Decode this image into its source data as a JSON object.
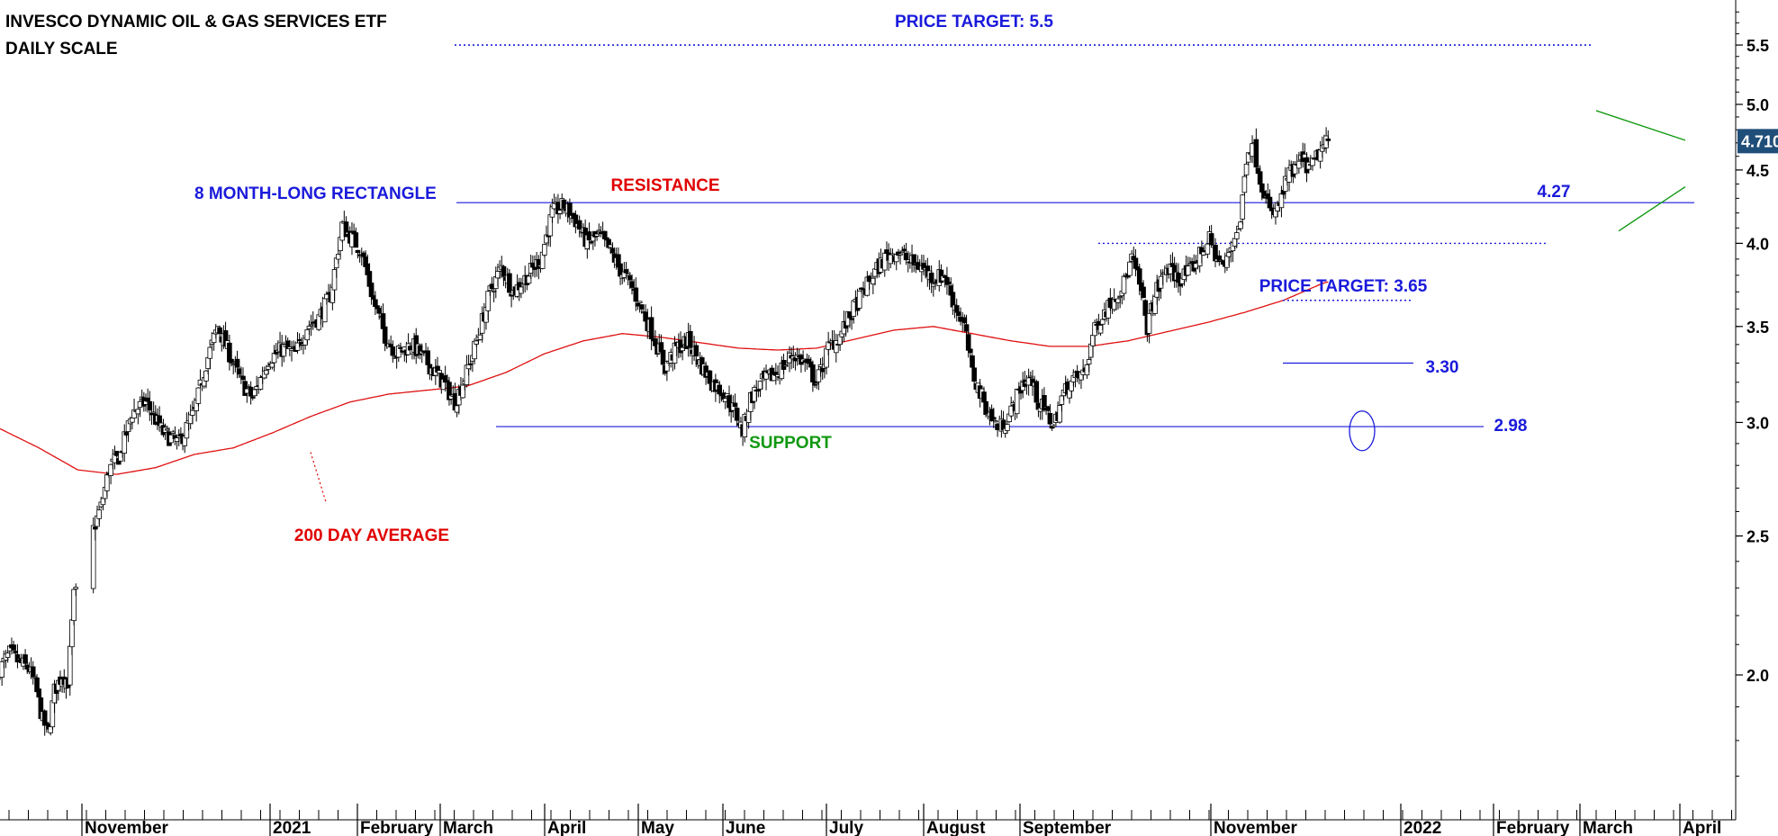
{
  "title": {
    "line1": "INVESCO DYNAMIC OIL & GAS SERVICES ETF",
    "line2": "DAILY SCALE"
  },
  "colors": {
    "blue": "#1a1adb",
    "red": "#e00000",
    "green": "#119911",
    "ma_red": "#e01010",
    "price_tag_bg": "#1f4e79"
  },
  "annotations": {
    "price_target_top": "PRICE TARGET: 5.5",
    "rectangle": "8 MONTH-LONG RECTANGLE",
    "resistance": "RESISTANCE",
    "support": "SUPPORT",
    "ma200": "200 DAY AVERAGE",
    "price_target_small": "PRICE TARGET: 3.65",
    "level_427": "4.27",
    "level_330": "3.30",
    "level_298": "2.98",
    "last_price": "4.710"
  },
  "chart_data": {
    "type": "candlestick",
    "title": "INVESCO DYNAMIC OIL & GAS SERVICES ETF",
    "subtitle": "DAILY SCALE",
    "y_scale": "log",
    "ylim": [
      1.62,
      5.85
    ],
    "y_ticks": [
      "2.0",
      "2.5",
      "3.0",
      "3.5",
      "4.0",
      "4.5",
      "5.0",
      "5.5"
    ],
    "x_labels": [
      "November",
      "2021",
      "February",
      "March",
      "April",
      "May",
      "June",
      "July",
      "August",
      "September",
      "November",
      "2022",
      "February",
      "March",
      "April"
    ],
    "close_path": [
      [
        0,
        2.02
      ],
      [
        5,
        2.07
      ],
      [
        10,
        2.04
      ],
      [
        15,
        2.02
      ],
      [
        18,
        1.97
      ],
      [
        22,
        1.86
      ],
      [
        25,
        1.82
      ],
      [
        28,
        1.95
      ],
      [
        32,
        2.0
      ],
      [
        35,
        1.98
      ],
      [
        38,
        2.27
      ],
      [
        42,
        2.3
      ],
      [
        46,
        2.48
      ],
      [
        52,
        2.62
      ],
      [
        56,
        2.78
      ],
      [
        62,
        2.85
      ],
      [
        68,
        3.05
      ],
      [
        75,
        3.1
      ],
      [
        84,
        2.95
      ],
      [
        92,
        2.9
      ],
      [
        100,
        3.05
      ],
      [
        106,
        3.3
      ],
      [
        112,
        3.5
      ],
      [
        118,
        3.35
      ],
      [
        124,
        3.2
      ],
      [
        130,
        3.12
      ],
      [
        138,
        3.32
      ],
      [
        146,
        3.38
      ],
      [
        152,
        3.35
      ],
      [
        158,
        3.5
      ],
      [
        164,
        3.55
      ],
      [
        170,
        3.68
      ],
      [
        176,
        4.12
      ],
      [
        180,
        4.05
      ],
      [
        186,
        3.95
      ],
      [
        192,
        3.65
      ],
      [
        198,
        3.45
      ],
      [
        204,
        3.35
      ],
      [
        212,
        3.4
      ],
      [
        220,
        3.3
      ],
      [
        228,
        3.2
      ],
      [
        234,
        3.1
      ],
      [
        240,
        3.25
      ],
      [
        246,
        3.45
      ],
      [
        252,
        3.7
      ],
      [
        258,
        3.85
      ],
      [
        264,
        3.7
      ],
      [
        270,
        3.78
      ],
      [
        278,
        3.9
      ],
      [
        284,
        4.2
      ],
      [
        290,
        4.25
      ],
      [
        296,
        4.15
      ],
      [
        302,
        4.0
      ],
      [
        308,
        4.05
      ],
      [
        314,
        3.95
      ],
      [
        318,
        3.85
      ],
      [
        324,
        3.75
      ],
      [
        330,
        3.6
      ],
      [
        336,
        3.45
      ],
      [
        342,
        3.28
      ],
      [
        348,
        3.38
      ],
      [
        354,
        3.42
      ],
      [
        360,
        3.3
      ],
      [
        366,
        3.2
      ],
      [
        372,
        3.15
      ],
      [
        378,
        3.05
      ],
      [
        382,
        2.96
      ],
      [
        386,
        3.12
      ],
      [
        392,
        3.2
      ],
      [
        400,
        3.25
      ],
      [
        408,
        3.35
      ],
      [
        414,
        3.3
      ],
      [
        420,
        3.2
      ],
      [
        426,
        3.38
      ],
      [
        432,
        3.45
      ],
      [
        438,
        3.58
      ],
      [
        444,
        3.7
      ],
      [
        450,
        3.82
      ],
      [
        456,
        3.92
      ],
      [
        462,
        3.95
      ],
      [
        468,
        3.88
      ],
      [
        474,
        3.85
      ],
      [
        480,
        3.78
      ],
      [
        486,
        3.8
      ],
      [
        490,
        3.65
      ],
      [
        496,
        3.5
      ],
      [
        500,
        3.25
      ],
      [
        506,
        3.1
      ],
      [
        510,
        3.02
      ],
      [
        514,
        2.97
      ],
      [
        520,
        3.05
      ],
      [
        526,
        3.2
      ],
      [
        530,
        3.22
      ],
      [
        534,
        3.1
      ],
      [
        538,
        3.05
      ],
      [
        542,
        2.98
      ],
      [
        546,
        3.12
      ],
      [
        550,
        3.2
      ],
      [
        554,
        3.22
      ],
      [
        558,
        3.25
      ],
      [
        562,
        3.45
      ],
      [
        566,
        3.55
      ],
      [
        572,
        3.65
      ],
      [
        578,
        3.75
      ],
      [
        582,
        3.9
      ],
      [
        586,
        3.75
      ],
      [
        590,
        3.5
      ],
      [
        594,
        3.68
      ],
      [
        600,
        3.85
      ],
      [
        606,
        3.78
      ],
      [
        612,
        3.82
      ],
      [
        618,
        3.95
      ],
      [
        622,
        4.02
      ],
      [
        626,
        3.9
      ],
      [
        630,
        3.85
      ],
      [
        634,
        4.02
      ],
      [
        638,
        4.15
      ],
      [
        641,
        4.6
      ],
      [
        644,
        4.72
      ],
      [
        648,
        4.45
      ],
      [
        651,
        4.3
      ],
      [
        654,
        4.18
      ],
      [
        658,
        4.25
      ],
      [
        662,
        4.45
      ],
      [
        666,
        4.5
      ],
      [
        670,
        4.58
      ],
      [
        674,
        4.5
      ],
      [
        678,
        4.62
      ],
      [
        683,
        4.71
      ]
    ],
    "levels": {
      "resistance": 4.27,
      "support": 2.98,
      "target": 5.5,
      "breakout": 3.3,
      "small_target": 3.65,
      "small_resistance": 4.0
    },
    "ma200": [
      [
        0,
        2.97
      ],
      [
        20,
        2.88
      ],
      [
        40,
        2.78
      ],
      [
        60,
        2.76
      ],
      [
        80,
        2.79
      ],
      [
        100,
        2.85
      ],
      [
        120,
        2.88
      ],
      [
        140,
        2.95
      ],
      [
        160,
        3.03
      ],
      [
        180,
        3.1
      ],
      [
        200,
        3.14
      ],
      [
        220,
        3.16
      ],
      [
        240,
        3.18
      ],
      [
        260,
        3.25
      ],
      [
        280,
        3.35
      ],
      [
        300,
        3.42
      ],
      [
        320,
        3.46
      ],
      [
        340,
        3.44
      ],
      [
        360,
        3.41
      ],
      [
        380,
        3.38
      ],
      [
        400,
        3.37
      ],
      [
        420,
        3.38
      ],
      [
        440,
        3.43
      ],
      [
        460,
        3.48
      ],
      [
        480,
        3.5
      ],
      [
        500,
        3.46
      ],
      [
        520,
        3.42
      ],
      [
        540,
        3.39
      ],
      [
        560,
        3.39
      ],
      [
        580,
        3.42
      ],
      [
        600,
        3.47
      ],
      [
        620,
        3.52
      ],
      [
        640,
        3.58
      ],
      [
        660,
        3.65
      ],
      [
        680,
        3.75
      ],
      [
        683,
        3.76
      ]
    ]
  }
}
